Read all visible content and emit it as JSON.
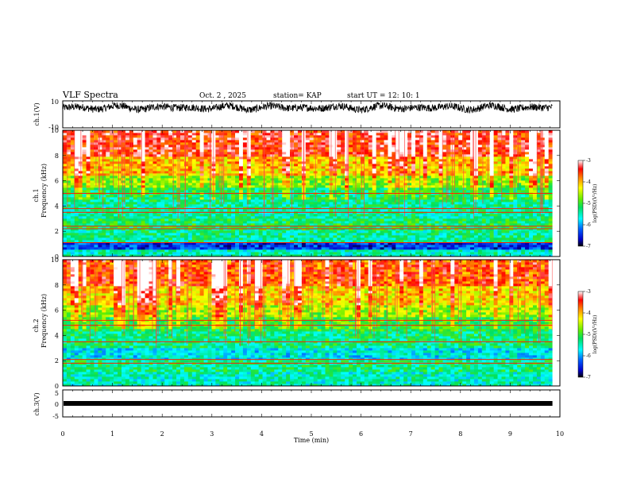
{
  "header": {
    "title": "VLF Spectra",
    "date": "Oct. 2  , 2025",
    "station": "station= KAP",
    "start": "start  UT  =   12: 10: 1"
  },
  "chart_data": [
    {
      "type": "line",
      "panel": "ch1-waveform",
      "ylabel": "ch.1(V)",
      "ylim": [
        -10,
        10
      ],
      "yticks": [
        "10",
        "-10"
      ],
      "xlim": [
        0,
        10
      ],
      "x_end": 9.85,
      "description_level": "noisy trace around 5 V, ranging roughly 1 to 9 V"
    },
    {
      "type": "heatmap",
      "panel": "ch1-spectrogram",
      "ylabel_top": "ch.1",
      "ylabel": "Frequency  (kHz)",
      "ylim": [
        0,
        10
      ],
      "yticks": [
        "0",
        "2",
        "4",
        "6",
        "8",
        "10"
      ],
      "xlim": [
        0,
        10
      ],
      "x_end": 9.85,
      "colorbar": {
        "label": "log(PSD)(V²/Hz)",
        "range": [
          -7,
          -3
        ],
        "ticks": [
          "-3",
          "-4",
          "-5",
          "-6",
          "-7"
        ]
      },
      "bands": [
        {
          "from": 0.0,
          "to": 0.6,
          "level": -5.5
        },
        {
          "from": 0.6,
          "to": 1.2,
          "level": -6.4
        },
        {
          "from": 1.2,
          "to": 2.0,
          "level": -5.4
        },
        {
          "from": 2.0,
          "to": 3.0,
          "level": -5.2
        },
        {
          "from": 3.0,
          "to": 4.4,
          "level": -5.4
        },
        {
          "from": 4.4,
          "to": 5.4,
          "level": -5.3
        },
        {
          "from": 5.4,
          "to": 6.5,
          "level": -4.8
        },
        {
          "from": 6.5,
          "to": 8.0,
          "level": -4.2
        },
        {
          "from": 8.0,
          "to": 10.0,
          "level": -3.6
        }
      ],
      "lines_khz": [
        1.1,
        2.2,
        2.4,
        3.5,
        3.8,
        5.0
      ]
    },
    {
      "type": "heatmap",
      "panel": "ch2-spectrogram",
      "ylabel_top": "ch.2",
      "ylabel": "Frequency  (kHz)",
      "ylim": [
        0,
        10
      ],
      "yticks": [
        "0",
        "2",
        "4",
        "6",
        "8",
        "10"
      ],
      "xlim": [
        0,
        10
      ],
      "x_end": 9.85,
      "colorbar": {
        "label": "log(PSD)(V²/Hz)",
        "range": [
          -7,
          -3
        ],
        "ticks": [
          "-3",
          "-4",
          "-5",
          "-6",
          "-7"
        ]
      },
      "bands": [
        {
          "from": 0.0,
          "to": 0.6,
          "level": -5.5
        },
        {
          "from": 0.6,
          "to": 1.2,
          "level": -5.5
        },
        {
          "from": 1.2,
          "to": 2.0,
          "level": -5.3
        },
        {
          "from": 2.0,
          "to": 3.0,
          "level": -5.7
        },
        {
          "from": 3.0,
          "to": 4.4,
          "level": -5.3
        },
        {
          "from": 4.4,
          "to": 5.4,
          "level": -5.1
        },
        {
          "from": 5.4,
          "to": 6.5,
          "level": -4.7
        },
        {
          "from": 6.5,
          "to": 8.0,
          "level": -4.3
        },
        {
          "from": 8.0,
          "to": 10.0,
          "level": -3.8
        }
      ],
      "lines_khz": [
        1.8,
        2.1,
        3.5,
        4.8,
        5.2
      ]
    },
    {
      "type": "line",
      "panel": "ch3-waveform",
      "ylabel": "ch.3(V)",
      "ylim": [
        -5,
        5
      ],
      "yticks": [
        "5",
        "0",
        "-5"
      ],
      "xlim": [
        0,
        10
      ],
      "x_end": 9.85,
      "level": 0.0,
      "xlabel": "Time  (min)",
      "xticks": [
        "0",
        "1",
        "2",
        "3",
        "4",
        "5",
        "6",
        "7",
        "8",
        "9",
        "10"
      ]
    }
  ]
}
